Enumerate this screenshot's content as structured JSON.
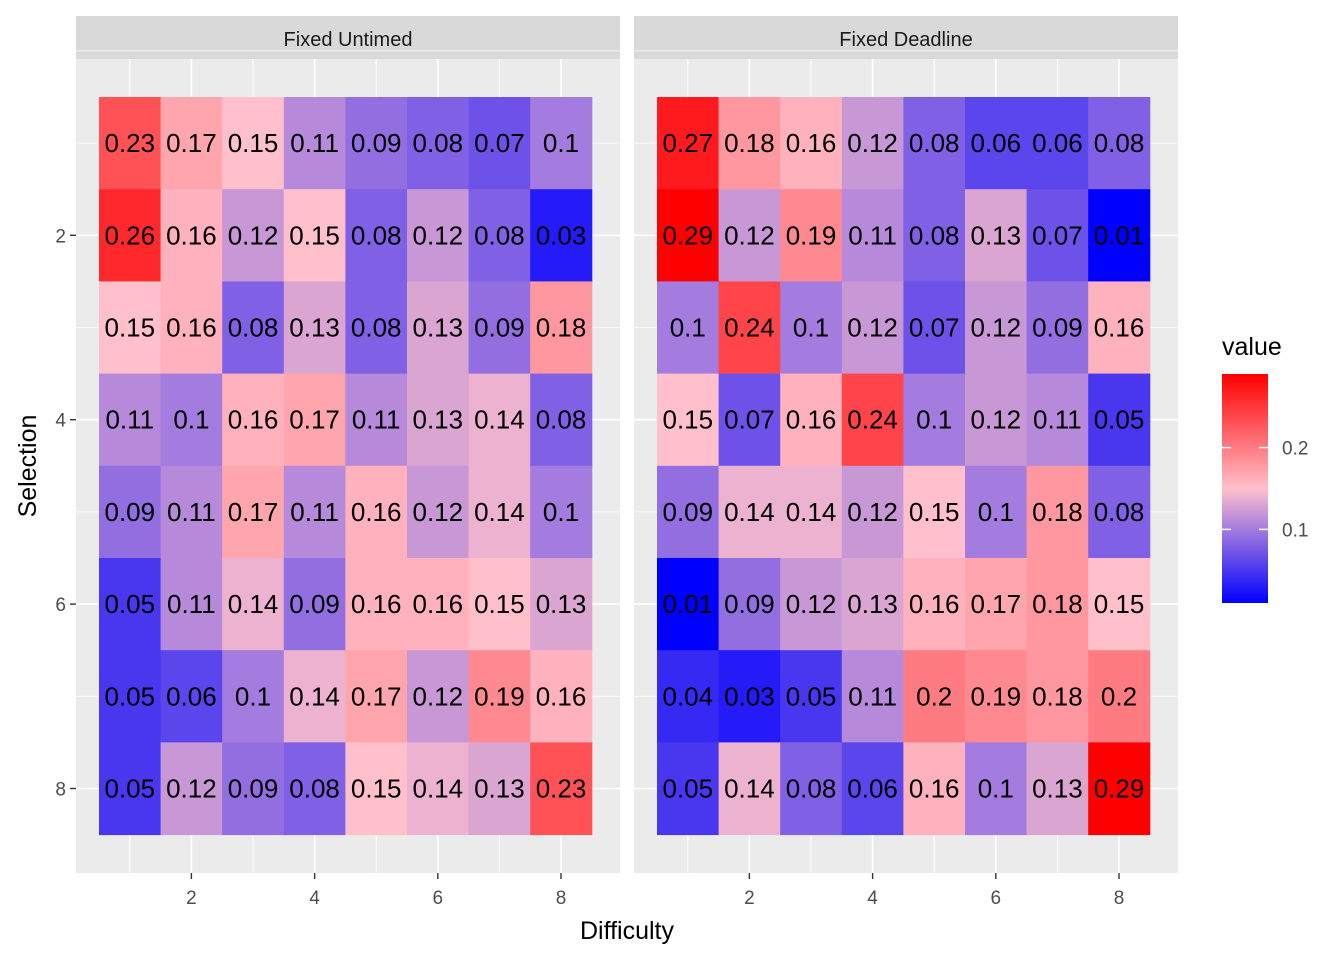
{
  "chart_data": {
    "type": "heatmap",
    "xlabel": "Difficulty",
    "ylabel": "Selection",
    "x_categories": [
      1,
      2,
      3,
      4,
      5,
      6,
      7,
      8
    ],
    "y_categories": [
      1,
      2,
      3,
      4,
      5,
      6,
      7,
      8
    ],
    "x_ticks": [
      "2",
      "4",
      "6",
      "8"
    ],
    "y_ticks": [
      "2",
      "4",
      "6",
      "8"
    ],
    "y_order": "top-to-bottom increasing",
    "panels": [
      {
        "title": "Fixed Untimed",
        "values": [
          [
            0.23,
            0.17,
            0.15,
            0.11,
            0.09,
            0.08,
            0.07,
            0.1
          ],
          [
            0.26,
            0.16,
            0.12,
            0.15,
            0.08,
            0.12,
            0.08,
            0.03
          ],
          [
            0.15,
            0.16,
            0.08,
            0.13,
            0.08,
            0.13,
            0.09,
            0.18
          ],
          [
            0.11,
            0.1,
            0.16,
            0.17,
            0.11,
            0.13,
            0.14,
            0.08
          ],
          [
            0.09,
            0.11,
            0.17,
            0.11,
            0.16,
            0.12,
            0.14,
            0.1
          ],
          [
            0.05,
            0.11,
            0.14,
            0.09,
            0.16,
            0.16,
            0.15,
            0.13
          ],
          [
            0.05,
            0.06,
            0.1,
            0.14,
            0.17,
            0.12,
            0.19,
            0.16
          ],
          [
            0.05,
            0.12,
            0.09,
            0.08,
            0.15,
            0.14,
            0.13,
            0.23
          ]
        ]
      },
      {
        "title": "Fixed Deadline",
        "values": [
          [
            0.27,
            0.18,
            0.16,
            0.12,
            0.08,
            0.06,
            0.06,
            0.08
          ],
          [
            0.29,
            0.12,
            0.19,
            0.11,
            0.08,
            0.13,
            0.07,
            0.01
          ],
          [
            0.1,
            0.24,
            0.1,
            0.12,
            0.07,
            0.12,
            0.09,
            0.16
          ],
          [
            0.15,
            0.07,
            0.16,
            0.24,
            0.1,
            0.12,
            0.11,
            0.05
          ],
          [
            0.09,
            0.14,
            0.14,
            0.12,
            0.15,
            0.1,
            0.18,
            0.08
          ],
          [
            0.01,
            0.09,
            0.12,
            0.13,
            0.16,
            0.17,
            0.18,
            0.15
          ],
          [
            0.04,
            0.03,
            0.05,
            0.11,
            0.2,
            0.19,
            0.18,
            0.2
          ],
          [
            0.05,
            0.14,
            0.08,
            0.06,
            0.16,
            0.1,
            0.13,
            0.29
          ]
        ]
      }
    ],
    "legend": {
      "title": "value",
      "ticks": [
        "0.1",
        "0.2"
      ],
      "tick_values": [
        0.1,
        0.2
      ],
      "min": 0.01,
      "max": 0.29,
      "colors": {
        "low": "#0000FF",
        "mid": "#FFC0CB",
        "high": "#FF0000"
      },
      "placement": "right"
    },
    "grid": true,
    "panel_background": "#EBEBEB",
    "strip_background": "#D9D9D9"
  }
}
